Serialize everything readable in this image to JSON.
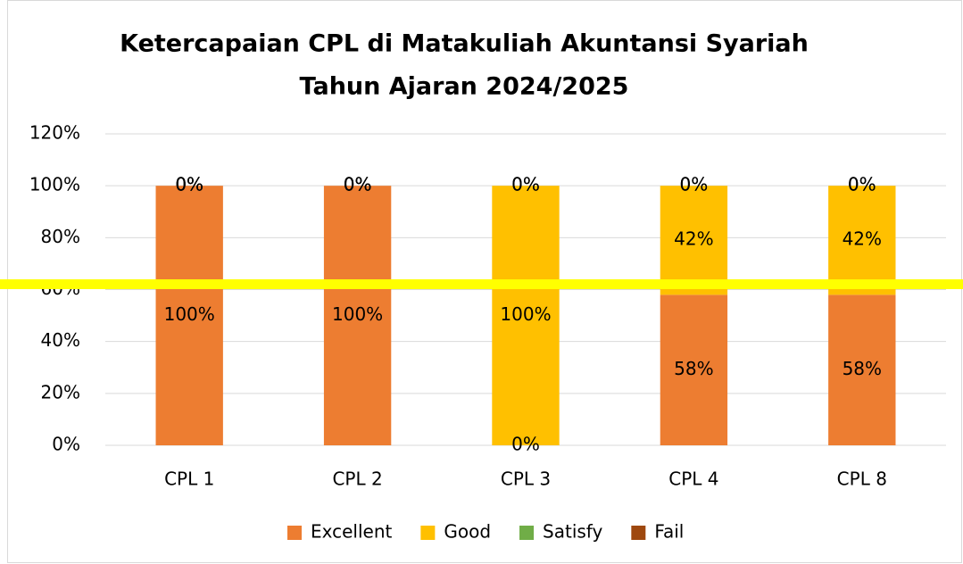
{
  "chart_data": {
    "type": "stacked_bar",
    "title": [
      "Ketercapaian CPL di Matakuliah Akuntansi Syariah",
      "Tahun Ajaran 2024/2025"
    ],
    "categories": [
      "CPL 1",
      "CPL 2",
      "CPL 3",
      "CPL 4",
      "CPL 8"
    ],
    "series": [
      {
        "name": "Excellent",
        "color": "#ED7D31",
        "values": [
          100,
          100,
          0,
          58,
          58
        ],
        "value_labels": [
          "100%",
          "100%",
          "0%",
          "58%",
          "58%"
        ]
      },
      {
        "name": "Good",
        "color": "#FFC000",
        "values": [
          0,
          0,
          100,
          42,
          42
        ],
        "value_labels": [
          "0%",
          "0%",
          "100%",
          "42%",
          "42%"
        ]
      },
      {
        "name": "Satisfy",
        "color": "#70AD47",
        "values": [
          0,
          0,
          0,
          0,
          0
        ],
        "value_labels": [
          "0%",
          "0%",
          "0%",
          "0%",
          "0%"
        ]
      },
      {
        "name": "Fail",
        "color": "#9E480E",
        "values": [
          0,
          0,
          0,
          0,
          0
        ],
        "value_labels": [
          "0%",
          "0%",
          "0%",
          "0%",
          "0%"
        ]
      }
    ],
    "ylim": [
      0,
      120
    ],
    "yticks": [
      {
        "value": 0,
        "label": "0%"
      },
      {
        "value": 20,
        "label": "20%"
      },
      {
        "value": 40,
        "label": "40%"
      },
      {
        "value": 60,
        "label": "60%"
      },
      {
        "value": 80,
        "label": "80%"
      },
      {
        "value": 100,
        "label": "100%"
      },
      {
        "value": 120,
        "label": "120%"
      }
    ],
    "grid": true,
    "legend": "bottom"
  }
}
